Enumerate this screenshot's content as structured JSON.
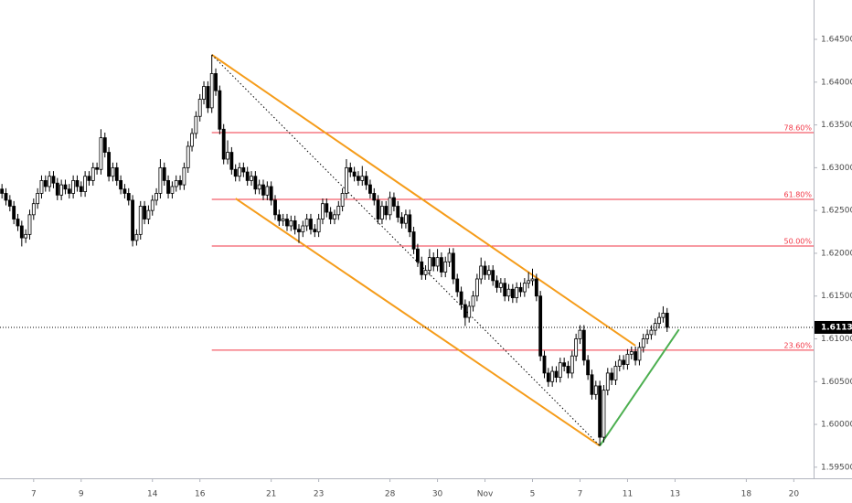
{
  "chart_data": {
    "type": "candlestick",
    "ylim": [
      1.5937,
      1.6496
    ],
    "xlim": [
      -0.5,
      205
    ],
    "yticks": [
      {
        "value": 1.595,
        "label": "1.59500"
      },
      {
        "value": 1.6,
        "label": "1.60000"
      },
      {
        "value": 1.605,
        "label": "1.60500"
      },
      {
        "value": 1.61,
        "label": "1.61000"
      },
      {
        "value": 1.615,
        "label": "1.61500"
      },
      {
        "value": 1.62,
        "label": "1.62000"
      },
      {
        "value": 1.625,
        "label": "1.62500"
      },
      {
        "value": 1.63,
        "label": "1.63000"
      },
      {
        "value": 1.635,
        "label": "1.63500"
      },
      {
        "value": 1.64,
        "label": "1.64000"
      },
      {
        "value": 1.645,
        "label": "1.64500"
      }
    ],
    "xticks": [
      {
        "value": 8,
        "label": "7"
      },
      {
        "value": 20,
        "label": "9"
      },
      {
        "value": 38,
        "label": "14"
      },
      {
        "value": 50,
        "label": "16"
      },
      {
        "value": 68,
        "label": "21"
      },
      {
        "value": 80,
        "label": "23"
      },
      {
        "value": 98,
        "label": "28"
      },
      {
        "value": 110,
        "label": "30"
      },
      {
        "value": 122,
        "label": "Nov"
      },
      {
        "value": 134,
        "label": "5"
      },
      {
        "value": 146,
        "label": "7"
      },
      {
        "value": 158,
        "label": "11"
      },
      {
        "value": 170,
        "label": "13"
      },
      {
        "value": 188,
        "label": "18"
      },
      {
        "value": 200,
        "label": "20"
      }
    ],
    "last_price": 1.61134,
    "up_color": "#ffffff",
    "down_color": "#000000",
    "fib": {
      "from": 53,
      "color": "#f23645",
      "levels": [
        {
          "label": "78.60%",
          "price": 1.6341
        },
        {
          "label": "61.80%",
          "price": 1.6263
        },
        {
          "label": "50.00%",
          "price": 1.62085
        },
        {
          "label": "23.60%",
          "price": 1.60868
        }
      ]
    },
    "lines": [
      {
        "color": "#f59c1a",
        "style": "solid",
        "points": [
          [
            53,
            1.6432
          ],
          [
            160,
            1.6092
          ]
        ]
      },
      {
        "color": "#f59c1a",
        "style": "solid",
        "points": [
          [
            59,
            1.6264
          ],
          [
            151,
            1.5975
          ]
        ]
      },
      {
        "color": "#000000",
        "style": "dotted",
        "points": [
          [
            53,
            1.6432
          ],
          [
            151,
            1.5975
          ]
        ]
      },
      {
        "color": "#4caf50",
        "style": "solid",
        "points": [
          [
            151,
            1.5975
          ],
          [
            171,
            1.6111
          ]
        ]
      }
    ],
    "candles": [
      [
        1.6275,
        1.6281,
        1.6264,
        1.627
      ],
      [
        1.627,
        1.6276,
        1.6256,
        1.6262
      ],
      [
        1.6262,
        1.6268,
        1.6249,
        1.6255
      ],
      [
        1.6255,
        1.6261,
        1.6234,
        1.624
      ],
      [
        1.624,
        1.6246,
        1.6226,
        1.6232
      ],
      [
        1.6232,
        1.6238,
        1.6208,
        1.6218
      ],
      [
        1.6218,
        1.6228,
        1.6212,
        1.6222
      ],
      [
        1.6222,
        1.6251,
        1.6216,
        1.6245
      ],
      [
        1.6245,
        1.6264,
        1.6239,
        1.6258
      ],
      [
        1.6258,
        1.6276,
        1.6252,
        1.627
      ],
      [
        1.627,
        1.6291,
        1.6264,
        1.6285
      ],
      [
        1.6285,
        1.6291,
        1.6272,
        1.6278
      ],
      [
        1.6278,
        1.6296,
        1.6272,
        1.629
      ],
      [
        1.629,
        1.6296,
        1.6276,
        1.6282
      ],
      [
        1.6282,
        1.6288,
        1.6262,
        1.6268
      ],
      [
        1.6268,
        1.6286,
        1.6262,
        1.628
      ],
      [
        1.628,
        1.6286,
        1.6269,
        1.6275
      ],
      [
        1.6275,
        1.6281,
        1.6264,
        1.627
      ],
      [
        1.627,
        1.6291,
        1.6264,
        1.6285
      ],
      [
        1.6285,
        1.6291,
        1.6272,
        1.6278
      ],
      [
        1.6278,
        1.6284,
        1.6266,
        1.6272
      ],
      [
        1.6272,
        1.6296,
        1.6266,
        1.629
      ],
      [
        1.629,
        1.6296,
        1.6279,
        1.6285
      ],
      [
        1.6285,
        1.6306,
        1.6279,
        1.63
      ],
      [
        1.63,
        1.6306,
        1.6292,
        1.6298
      ],
      [
        1.6298,
        1.6345,
        1.6292,
        1.6335
      ],
      [
        1.6335,
        1.6341,
        1.6312,
        1.6318
      ],
      [
        1.6318,
        1.6324,
        1.6284,
        1.629
      ],
      [
        1.629,
        1.6306,
        1.6284,
        1.63
      ],
      [
        1.63,
        1.6306,
        1.6279,
        1.6285
      ],
      [
        1.6285,
        1.6291,
        1.6269,
        1.6275
      ],
      [
        1.6275,
        1.6281,
        1.6264,
        1.627
      ],
      [
        1.627,
        1.6276,
        1.6256,
        1.6262
      ],
      [
        1.6262,
        1.6268,
        1.6208,
        1.6215
      ],
      [
        1.6215,
        1.6228,
        1.6209,
        1.6222
      ],
      [
        1.6222,
        1.6261,
        1.6216,
        1.6255
      ],
      [
        1.6255,
        1.6261,
        1.6234,
        1.624
      ],
      [
        1.624,
        1.6256,
        1.6234,
        1.625
      ],
      [
        1.625,
        1.6268,
        1.6244,
        1.6262
      ],
      [
        1.6262,
        1.6276,
        1.6256,
        1.627
      ],
      [
        1.627,
        1.631,
        1.6264,
        1.63
      ],
      [
        1.63,
        1.6306,
        1.6279,
        1.6285
      ],
      [
        1.6285,
        1.6291,
        1.6264,
        1.627
      ],
      [
        1.627,
        1.6284,
        1.6264,
        1.6278
      ],
      [
        1.6278,
        1.6291,
        1.6272,
        1.6285
      ],
      [
        1.6285,
        1.6291,
        1.6274,
        1.628
      ],
      [
        1.628,
        1.6306,
        1.6274,
        1.63
      ],
      [
        1.63,
        1.6331,
        1.6294,
        1.6325
      ],
      [
        1.6325,
        1.6346,
        1.6319,
        1.634
      ],
      [
        1.634,
        1.6366,
        1.6334,
        1.636
      ],
      [
        1.636,
        1.6386,
        1.6354,
        1.638
      ],
      [
        1.638,
        1.6401,
        1.6374,
        1.6395
      ],
      [
        1.6395,
        1.6401,
        1.6364,
        1.637
      ],
      [
        1.637,
        1.6432,
        1.6364,
        1.641
      ],
      [
        1.641,
        1.6416,
        1.6384,
        1.639
      ],
      [
        1.639,
        1.6396,
        1.6339,
        1.6345
      ],
      [
        1.6345,
        1.6351,
        1.6304,
        1.631
      ],
      [
        1.631,
        1.6332,
        1.6304,
        1.6318
      ],
      [
        1.6318,
        1.6324,
        1.6292,
        1.6298
      ],
      [
        1.6298,
        1.6304,
        1.6284,
        1.629
      ],
      [
        1.629,
        1.6306,
        1.6284,
        1.63
      ],
      [
        1.63,
        1.6306,
        1.6289,
        1.6295
      ],
      [
        1.6295,
        1.6301,
        1.6279,
        1.6285
      ],
      [
        1.6285,
        1.6296,
        1.6279,
        1.629
      ],
      [
        1.629,
        1.6296,
        1.6269,
        1.6275
      ],
      [
        1.6275,
        1.6286,
        1.6269,
        1.628
      ],
      [
        1.628,
        1.6286,
        1.6262,
        1.6268
      ],
      [
        1.6268,
        1.6284,
        1.6262,
        1.6278
      ],
      [
        1.6278,
        1.6284,
        1.6256,
        1.6262
      ],
      [
        1.6262,
        1.6268,
        1.6239,
        1.6245
      ],
      [
        1.6245,
        1.6251,
        1.6232,
        1.6238
      ],
      [
        1.6238,
        1.6246,
        1.6232,
        1.624
      ],
      [
        1.624,
        1.6246,
        1.6226,
        1.6232
      ],
      [
        1.6232,
        1.6244,
        1.6226,
        1.6238
      ],
      [
        1.6238,
        1.6244,
        1.6222,
        1.6228
      ],
      [
        1.6228,
        1.6234,
        1.6212,
        1.6225
      ],
      [
        1.6225,
        1.6238,
        1.6219,
        1.6232
      ],
      [
        1.6232,
        1.6246,
        1.6226,
        1.624
      ],
      [
        1.624,
        1.6246,
        1.6222,
        1.6228
      ],
      [
        1.6228,
        1.6234,
        1.6219,
        1.6225
      ],
      [
        1.6225,
        1.6246,
        1.6219,
        1.624
      ],
      [
        1.624,
        1.6264,
        1.6234,
        1.6258
      ],
      [
        1.6258,
        1.6264,
        1.6242,
        1.6248
      ],
      [
        1.6248,
        1.6254,
        1.6234,
        1.624
      ],
      [
        1.624,
        1.6251,
        1.6234,
        1.6245
      ],
      [
        1.6245,
        1.6261,
        1.6239,
        1.6255
      ],
      [
        1.6255,
        1.6276,
        1.6249,
        1.627
      ],
      [
        1.627,
        1.631,
        1.6264,
        1.63
      ],
      [
        1.63,
        1.6306,
        1.6289,
        1.6295
      ],
      [
        1.6295,
        1.6301,
        1.6284,
        1.629
      ],
      [
        1.629,
        1.6296,
        1.6279,
        1.6285
      ],
      [
        1.6285,
        1.6302,
        1.6279,
        1.629
      ],
      [
        1.629,
        1.6296,
        1.6274,
        1.628
      ],
      [
        1.628,
        1.6286,
        1.6264,
        1.627
      ],
      [
        1.627,
        1.6276,
        1.6256,
        1.6262
      ],
      [
        1.6262,
        1.6268,
        1.6234,
        1.624
      ],
      [
        1.624,
        1.6261,
        1.6234,
        1.6255
      ],
      [
        1.6255,
        1.6261,
        1.6239,
        1.6245
      ],
      [
        1.6245,
        1.6272,
        1.6239,
        1.6265
      ],
      [
        1.6265,
        1.6271,
        1.6249,
        1.6255
      ],
      [
        1.6255,
        1.6261,
        1.6236,
        1.6242
      ],
      [
        1.6242,
        1.6248,
        1.6229,
        1.6235
      ],
      [
        1.6235,
        1.6251,
        1.6229,
        1.6245
      ],
      [
        1.6245,
        1.6251,
        1.6219,
        1.6225
      ],
      [
        1.6225,
        1.6231,
        1.6199,
        1.6205
      ],
      [
        1.6205,
        1.6211,
        1.6184,
        1.619
      ],
      [
        1.619,
        1.6196,
        1.6169,
        1.6175
      ],
      [
        1.6175,
        1.6186,
        1.6169,
        1.618
      ],
      [
        1.618,
        1.6205,
        1.6174,
        1.6195
      ],
      [
        1.6195,
        1.6201,
        1.6179,
        1.6185
      ],
      [
        1.6185,
        1.6205,
        1.6179,
        1.6195
      ],
      [
        1.6195,
        1.6201,
        1.6172,
        1.6178
      ],
      [
        1.6178,
        1.6196,
        1.6172,
        1.619
      ],
      [
        1.619,
        1.6206,
        1.6184,
        1.62
      ],
      [
        1.62,
        1.6206,
        1.6164,
        1.617
      ],
      [
        1.617,
        1.6176,
        1.6149,
        1.6155
      ],
      [
        1.6155,
        1.6161,
        1.6134,
        1.614
      ],
      [
        1.614,
        1.6146,
        1.6115,
        1.6125
      ],
      [
        1.6125,
        1.6144,
        1.6119,
        1.6138
      ],
      [
        1.6138,
        1.6156,
        1.6132,
        1.615
      ],
      [
        1.615,
        1.6176,
        1.6144,
        1.617
      ],
      [
        1.617,
        1.6195,
        1.6164,
        1.6185
      ],
      [
        1.6185,
        1.6191,
        1.6169,
        1.6175
      ],
      [
        1.6175,
        1.6186,
        1.6169,
        1.618
      ],
      [
        1.618,
        1.6186,
        1.6162,
        1.6168
      ],
      [
        1.6168,
        1.6174,
        1.6154,
        1.616
      ],
      [
        1.616,
        1.6171,
        1.6154,
        1.6165
      ],
      [
        1.6165,
        1.6171,
        1.6144,
        1.615
      ],
      [
        1.615,
        1.6164,
        1.6144,
        1.6158
      ],
      [
        1.6158,
        1.6164,
        1.6142,
        1.6148
      ],
      [
        1.6148,
        1.6166,
        1.6142,
        1.616
      ],
      [
        1.616,
        1.6166,
        1.6149,
        1.6155
      ],
      [
        1.6155,
        1.6171,
        1.6149,
        1.6165
      ],
      [
        1.6165,
        1.6178,
        1.6159,
        1.6168
      ],
      [
        1.6168,
        1.6182,
        1.6162,
        1.617
      ],
      [
        1.617,
        1.6176,
        1.6144,
        1.615
      ],
      [
        1.615,
        1.6156,
        1.6074,
        1.608
      ],
      [
        1.608,
        1.6086,
        1.6054,
        1.606
      ],
      [
        1.606,
        1.6066,
        1.6044,
        1.605
      ],
      [
        1.605,
        1.6068,
        1.6044,
        1.6062
      ],
      [
        1.6062,
        1.6068,
        1.6049,
        1.6055
      ],
      [
        1.6055,
        1.6078,
        1.6049,
        1.6072
      ],
      [
        1.6072,
        1.6078,
        1.6062,
        1.6068
      ],
      [
        1.6068,
        1.6074,
        1.6054,
        1.606
      ],
      [
        1.606,
        1.6086,
        1.6054,
        1.608
      ],
      [
        1.608,
        1.6106,
        1.6074,
        1.61
      ],
      [
        1.61,
        1.6116,
        1.6094,
        1.611
      ],
      [
        1.611,
        1.6116,
        1.6069,
        1.6075
      ],
      [
        1.6075,
        1.6081,
        1.6052,
        1.6058
      ],
      [
        1.6058,
        1.6064,
        1.6029,
        1.6035
      ],
      [
        1.6035,
        1.6051,
        1.6029,
        1.6045
      ],
      [
        1.6045,
        1.6051,
        1.5975,
        1.5985
      ],
      [
        1.5985,
        1.6046,
        1.5979,
        1.604
      ],
      [
        1.604,
        1.6066,
        1.6034,
        1.606
      ],
      [
        1.606,
        1.6066,
        1.6046,
        1.6052
      ],
      [
        1.6052,
        1.6074,
        1.6046,
        1.6068
      ],
      [
        1.6068,
        1.6081,
        1.6062,
        1.6075
      ],
      [
        1.6075,
        1.6081,
        1.6064,
        1.607
      ],
      [
        1.607,
        1.6088,
        1.6064,
        1.6082
      ],
      [
        1.6082,
        1.6091,
        1.6076,
        1.6085
      ],
      [
        1.6085,
        1.6091,
        1.6069,
        1.6075
      ],
      [
        1.6075,
        1.6096,
        1.6069,
        1.609
      ],
      [
        1.609,
        1.6106,
        1.6084,
        1.61
      ],
      [
        1.61,
        1.6111,
        1.6094,
        1.6105
      ],
      [
        1.6105,
        1.6116,
        1.6099,
        1.611
      ],
      [
        1.611,
        1.6124,
        1.6104,
        1.6118
      ],
      [
        1.6118,
        1.6131,
        1.6112,
        1.6125
      ],
      [
        1.6125,
        1.6138,
        1.6119,
        1.613
      ],
      [
        1.613,
        1.6136,
        1.6108,
        1.61134
      ]
    ]
  }
}
